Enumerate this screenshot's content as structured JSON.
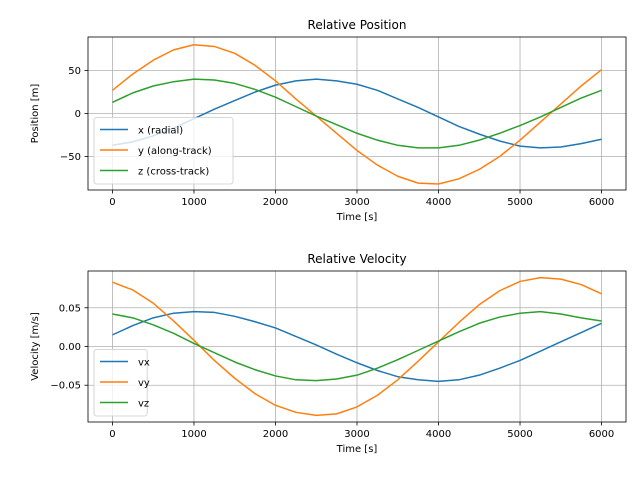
{
  "chart_data": [
    {
      "type": "line",
      "title": "Relative Position",
      "xlabel": "Time [s]",
      "ylabel": "Position [m]",
      "xlim": [
        -300,
        6300
      ],
      "ylim": [
        -89,
        89
      ],
      "xticks": [
        0,
        1000,
        2000,
        3000,
        4000,
        5000,
        6000
      ],
      "xtick_labels": [
        "0",
        "1000",
        "2000",
        "3000",
        "4000",
        "5000",
        "6000"
      ],
      "yticks": [
        -50,
        0,
        50
      ],
      "ytick_labels": [
        "−50",
        "0",
        "50"
      ],
      "grid": true,
      "legend": "bottom-left",
      "x": [
        0,
        250,
        500,
        750,
        1000,
        1250,
        1500,
        1750,
        2000,
        2250,
        2500,
        2750,
        3000,
        3250,
        3500,
        3750,
        4000,
        4250,
        4500,
        4750,
        5000,
        5250,
        5500,
        5750,
        6000
      ],
      "series": [
        {
          "name": "x (radial)",
          "color": "#1f77b4",
          "values": [
            -37,
            -33,
            -26,
            -17,
            -6,
            5,
            15,
            25,
            33,
            38,
            40,
            38,
            34,
            27,
            17,
            7,
            -4,
            -15,
            -24,
            -32,
            -38,
            -40,
            -39,
            -35,
            -30
          ]
        },
        {
          "name": "y (along-track)",
          "color": "#ff7f0e",
          "values": [
            27,
            46,
            62,
            74,
            80,
            78,
            70,
            56,
            38,
            17,
            -3,
            -23,
            -43,
            -60,
            -73,
            -81,
            -82,
            -76,
            -65,
            -50,
            -31,
            -10,
            11,
            32,
            51
          ]
        },
        {
          "name": "z (cross-track)",
          "color": "#2ca02c",
          "values": [
            13,
            24,
            32,
            37,
            40,
            39,
            35,
            28,
            19,
            8,
            -3,
            -13,
            -23,
            -31,
            -37,
            -40,
            -40,
            -37,
            -31,
            -23,
            -14,
            -4,
            7,
            18,
            27
          ]
        }
      ]
    },
    {
      "type": "line",
      "title": "Relative Velocity",
      "xlabel": "Time [s]",
      "ylabel": "Velocity [m/s]",
      "xlim": [
        -300,
        6300
      ],
      "ylim": [
        -0.0975,
        0.0975
      ],
      "xticks": [
        0,
        1000,
        2000,
        3000,
        4000,
        5000,
        6000
      ],
      "xtick_labels": [
        "0",
        "1000",
        "2000",
        "3000",
        "4000",
        "5000",
        "6000"
      ],
      "yticks": [
        -0.05,
        0,
        0.05
      ],
      "ytick_labels": [
        "−0.05",
        "0.00",
        "0.05"
      ],
      "grid": true,
      "legend": "bottom-left",
      "x": [
        0,
        250,
        500,
        750,
        1000,
        1250,
        1500,
        1750,
        2000,
        2250,
        2500,
        2750,
        3000,
        3250,
        3500,
        3750,
        4000,
        4250,
        4500,
        4750,
        5000,
        5250,
        5500,
        5750,
        6000
      ],
      "series": [
        {
          "name": "vx",
          "color": "#1f77b4",
          "values": [
            0.015,
            0.027,
            0.037,
            0.043,
            0.045,
            0.044,
            0.039,
            0.032,
            0.024,
            0.013,
            0.002,
            -0.01,
            -0.021,
            -0.031,
            -0.039,
            -0.043,
            -0.045,
            -0.043,
            -0.037,
            -0.028,
            -0.018,
            -0.006,
            0.006,
            0.018,
            0.03
          ]
        },
        {
          "name": "vy",
          "color": "#ff7f0e",
          "values": [
            0.083,
            0.073,
            0.056,
            0.033,
            0.008,
            -0.018,
            -0.041,
            -0.061,
            -0.076,
            -0.085,
            -0.089,
            -0.087,
            -0.078,
            -0.063,
            -0.043,
            -0.019,
            0.006,
            0.031,
            0.054,
            0.072,
            0.084,
            0.089,
            0.087,
            0.08,
            0.068
          ]
        },
        {
          "name": "vz",
          "color": "#2ca02c",
          "values": [
            0.042,
            0.037,
            0.028,
            0.017,
            0.004,
            -0.008,
            -0.02,
            -0.03,
            -0.038,
            -0.043,
            -0.044,
            -0.042,
            -0.037,
            -0.028,
            -0.017,
            -0.005,
            0.007,
            0.019,
            0.03,
            0.038,
            0.043,
            0.045,
            0.042,
            0.037,
            0.033
          ]
        }
      ]
    }
  ]
}
